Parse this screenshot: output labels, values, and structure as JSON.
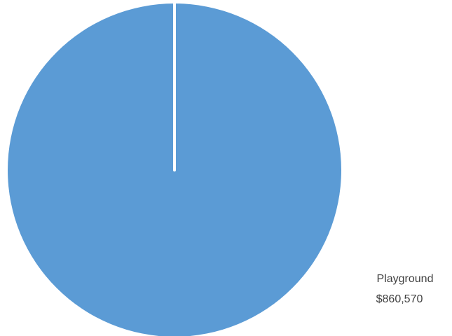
{
  "chart_data": {
    "type": "pie",
    "slices": [
      {
        "label": "Playground",
        "value": 860570,
        "value_label": "$860,570"
      }
    ],
    "colors": [
      "#5b9bd5"
    ],
    "legend": "none"
  }
}
